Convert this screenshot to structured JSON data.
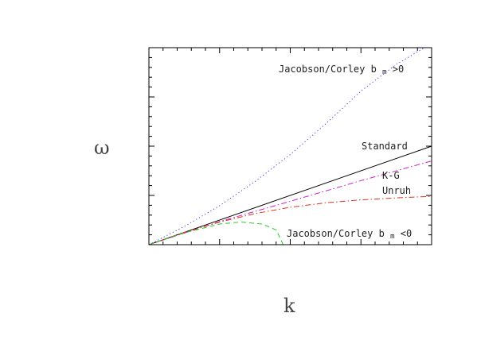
{
  "chart_data": {
    "type": "line",
    "xlabel": "k",
    "ylabel": "ω",
    "grid": false,
    "x_ticks_minor": 5,
    "x_ticks_major": 4,
    "y_ticks_major": 4,
    "curve_labels": [
      {
        "id": "jc_pos",
        "text": "Jacobson/Corley b",
        "sub": "m",
        "tail": ">0"
      },
      {
        "id": "standard",
        "text": "Standard"
      },
      {
        "id": "kg",
        "text": "K-G"
      },
      {
        "id": "unruh",
        "text": "Unruh"
      },
      {
        "id": "jc_neg",
        "text": "Jacobson/Corley b",
        "sub": "m",
        "tail": "<0"
      }
    ],
    "xlim": [
      0,
      4
    ],
    "ylim": [
      0,
      4
    ],
    "series": [
      {
        "id": "jc_pos",
        "style": "dotted",
        "color": "#3a3aff",
        "x": [
          0,
          0.5,
          1,
          1.5,
          2,
          2.5,
          3,
          3.5,
          3.9
        ],
        "y": [
          0,
          0.37,
          0.79,
          1.28,
          1.83,
          2.45,
          3.12,
          3.66,
          4.0
        ]
      },
      {
        "id": "standard",
        "style": "solid",
        "color": "#000000",
        "x": [
          0,
          4
        ],
        "y": [
          0,
          2.0
        ]
      },
      {
        "id": "kg",
        "style": "dashdot",
        "color": "#cc22cc",
        "x": [
          0,
          1,
          2,
          3,
          4
        ],
        "y": [
          0,
          0.47,
          0.88,
          1.3,
          1.7
        ]
      },
      {
        "id": "unruh",
        "style": "dashdot",
        "color": "#e03020",
        "x": [
          0,
          0.5,
          1,
          1.5,
          2,
          2.5,
          3,
          3.5,
          4
        ],
        "y": [
          0,
          0.25,
          0.46,
          0.63,
          0.76,
          0.85,
          0.91,
          0.95,
          0.98
        ]
      },
      {
        "id": "jc_neg",
        "style": "dashed",
        "color": "#22cc22",
        "x": [
          0,
          0.5,
          1,
          1.3,
          1.6,
          1.8,
          1.9
        ],
        "y": [
          0,
          0.24,
          0.42,
          0.46,
          0.42,
          0.3,
          0.0
        ]
      }
    ]
  }
}
